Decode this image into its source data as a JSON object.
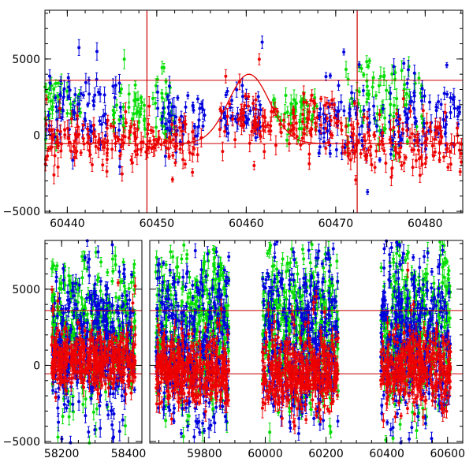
{
  "chart_data": [
    {
      "id": "top",
      "type": "scatter",
      "title": "",
      "xlabel": "",
      "ylabel": "",
      "xlim": [
        60437.5,
        60484.2
      ],
      "ylim": [
        -5100,
        8200
      ],
      "xticks": [
        60440,
        60450,
        60460,
        60470,
        60480
      ],
      "yticks": [
        -5000,
        0,
        5000
      ],
      "error_bars": true,
      "hlines": [
        3600,
        -550
      ],
      "vlines": [
        60448.9,
        60472.4
      ],
      "model_curve": {
        "x0": 60460.3,
        "sigma": 2.3,
        "base": -550,
        "peak": 4000,
        "color": "#e00000"
      },
      "colors": {
        "green": "#00dd00",
        "blue": "#0000dd",
        "red": "#ee0000",
        "lines": "#cc0000"
      },
      "series": [
        {
          "color": "green",
          "segments": [
            {
              "x": [
                60437.5,
                60441.5
              ],
              "mean": 2200,
              "sd": 900
            },
            {
              "x": [
                60445.0,
                60452.0
              ],
              "mean": 1800,
              "sd": 1100
            },
            {
              "x": [
                60463.0,
                60468.0
              ],
              "mean": 1500,
              "sd": 900
            },
            {
              "x": [
                60471.0,
                60480.0
              ],
              "mean": 2400,
              "sd": 1300
            }
          ]
        },
        {
          "color": "blue",
          "segments": [
            {
              "x": [
                60437.5,
                60446.0
              ],
              "mean": 1600,
              "sd": 1400
            },
            {
              "x": [
                60450.0,
                60455.5
              ],
              "mean": 1200,
              "sd": 900
            },
            {
              "x": [
                60457.0,
                60462.0
              ],
              "mean": 1500,
              "sd": 1000
            },
            {
              "x": [
                60468.0,
                60484.2
              ],
              "mean": 900,
              "sd": 1200
            }
          ]
        },
        {
          "color": "red",
          "segments": [
            {
              "x": [
                60437.5,
                60455.0
              ],
              "mean": -450,
              "sd": 900
            },
            {
              "x": [
                60457.0,
                60470.0
              ],
              "mean": 900,
              "sd": 1100
            },
            {
              "x": [
                60470.0,
                60484.2
              ],
              "mean": -500,
              "sd": 1000
            }
          ]
        }
      ]
    },
    {
      "id": "bottom",
      "type": "scatter",
      "title": "",
      "xlabel": "",
      "ylabel": "",
      "broken_axis": true,
      "ylim": [
        -5100,
        8200
      ],
      "yticks": [
        -5000,
        0,
        5000
      ],
      "error_bars": true,
      "hlines": [
        3600,
        -550
      ],
      "xticks": [
        58200,
        58400,
        59800,
        60000,
        60200,
        60400,
        60600
      ],
      "x_segments": [
        {
          "xlim": [
            58150,
            58440
          ]
        },
        {
          "xlim": [
            59620,
            60650
          ]
        }
      ],
      "colors": {
        "green": "#00dd00",
        "blue": "#0000dd",
        "red": "#ee0000",
        "lines": "#cc0000"
      },
      "series": [
        {
          "color": "green",
          "segments": [
            {
              "x": [
                58170,
                58420
              ],
              "mean": 2200,
              "sd": 2400
            },
            {
              "x": [
                59640,
                59880
              ],
              "mean": 2400,
              "sd": 2600
            },
            {
              "x": [
                59990,
                60240
              ],
              "mean": 2600,
              "sd": 2600
            },
            {
              "x": [
                60380,
                60610
              ],
              "mean": 2500,
              "sd": 2600
            }
          ]
        },
        {
          "color": "blue",
          "segments": [
            {
              "x": [
                58170,
                58420
              ],
              "mean": 1200,
              "sd": 2400
            },
            {
              "x": [
                59640,
                59880
              ],
              "mean": 1300,
              "sd": 2600
            },
            {
              "x": [
                59990,
                60240
              ],
              "mean": 1800,
              "sd": 2800
            },
            {
              "x": [
                60380,
                60610
              ],
              "mean": 1700,
              "sd": 2800
            }
          ]
        },
        {
          "color": "red",
          "segments": [
            {
              "x": [
                58170,
                58420
              ],
              "mean": 300,
              "sd": 900
            },
            {
              "x": [
                59640,
                59880
              ],
              "mean": -300,
              "sd": 1100
            },
            {
              "x": [
                59990,
                60240
              ],
              "mean": -400,
              "sd": 1200
            },
            {
              "x": [
                60380,
                60610
              ],
              "mean": -200,
              "sd": 1200
            }
          ]
        }
      ]
    }
  ]
}
